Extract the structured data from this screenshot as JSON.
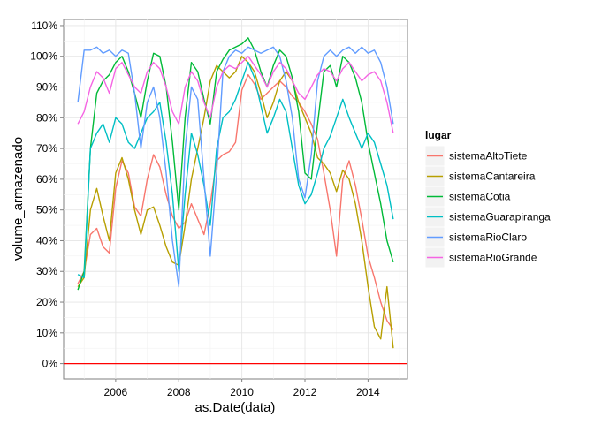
{
  "chart_data": {
    "type": "line",
    "xlabel": "as.Date(data)",
    "ylabel": "volume_armazenado",
    "xlim": [
      2004.35,
      2015.25
    ],
    "ylim": [
      -5,
      112
    ],
    "x_ticks": [
      2006,
      2008,
      2010,
      2012,
      2014
    ],
    "y_ticks": [
      0,
      10,
      20,
      30,
      40,
      50,
      60,
      70,
      80,
      90,
      100,
      110
    ],
    "y_tick_suffix": "%",
    "x_tick_labels": [
      "2006",
      "2008",
      "2010",
      "2012",
      "2014"
    ],
    "y_tick_labels": [
      "0%",
      "10%",
      "20%",
      "30%",
      "40%",
      "50%",
      "60%",
      "70%",
      "80%",
      "90%",
      "100%",
      "110%"
    ],
    "grid": true,
    "legend_position": "right",
    "legend_title": "lugar",
    "reference_line": {
      "y": 0,
      "color": "#ff0000"
    },
    "series": [
      {
        "name": "sistemaAltoTiete",
        "color": "#F8766D",
        "x": [
          2004.8,
          2005.0,
          2005.2,
          2005.4,
          2005.6,
          2005.8,
          2006.0,
          2006.2,
          2006.4,
          2006.6,
          2006.8,
          2007.0,
          2007.2,
          2007.4,
          2007.6,
          2007.8,
          2008.0,
          2008.2,
          2008.4,
          2008.6,
          2008.8,
          2009.0,
          2009.2,
          2009.4,
          2009.6,
          2009.8,
          2010.0,
          2010.2,
          2010.4,
          2010.6,
          2010.8,
          2011.0,
          2011.2,
          2011.4,
          2011.6,
          2011.8,
          2012.0,
          2012.2,
          2012.4,
          2012.6,
          2012.8,
          2013.0,
          2013.2,
          2013.4,
          2013.6,
          2013.8,
          2014.0,
          2014.2,
          2014.4,
          2014.6,
          2014.8
        ],
        "y": [
          26,
          30,
          42,
          44,
          38,
          36,
          57,
          66,
          62,
          51,
          48,
          60,
          68,
          64,
          55,
          48,
          44,
          46,
          52,
          47,
          42,
          52,
          66,
          68,
          69,
          72,
          89,
          94,
          91,
          86,
          88,
          90,
          92,
          90,
          87,
          85,
          82,
          78,
          73,
          62,
          50,
          35,
          60,
          66,
          58,
          47,
          35,
          28,
          20,
          14,
          11
        ]
      },
      {
        "name": "sistemaCantareira",
        "color": "#B79F00",
        "x": [
          2004.8,
          2005.0,
          2005.2,
          2005.4,
          2005.6,
          2005.8,
          2006.0,
          2006.2,
          2006.4,
          2006.6,
          2006.8,
          2007.0,
          2007.2,
          2007.4,
          2007.6,
          2007.8,
          2008.0,
          2008.2,
          2008.4,
          2008.6,
          2008.8,
          2009.0,
          2009.2,
          2009.4,
          2009.6,
          2009.8,
          2010.0,
          2010.2,
          2010.4,
          2010.6,
          2010.8,
          2011.0,
          2011.2,
          2011.4,
          2011.6,
          2011.8,
          2012.0,
          2012.2,
          2012.4,
          2012.6,
          2012.8,
          2013.0,
          2013.2,
          2013.4,
          2013.6,
          2013.8,
          2014.0,
          2014.2,
          2014.4,
          2014.6,
          2014.8
        ],
        "y": [
          25,
          28,
          50,
          57,
          48,
          40,
          62,
          67,
          60,
          50,
          42,
          50,
          51,
          45,
          38,
          33,
          32,
          45,
          60,
          70,
          80,
          92,
          97,
          95,
          93,
          95,
          100,
          98,
          95,
          88,
          80,
          85,
          92,
          95,
          92,
          85,
          80,
          75,
          67,
          65,
          62,
          56,
          63,
          60,
          52,
          40,
          25,
          12,
          8,
          25,
          5
        ]
      },
      {
        "name": "sistemaCotia",
        "color": "#00BA38",
        "x": [
          2004.8,
          2005.0,
          2005.2,
          2005.4,
          2005.6,
          2005.8,
          2006.0,
          2006.2,
          2006.4,
          2006.6,
          2006.8,
          2007.0,
          2007.2,
          2007.4,
          2007.6,
          2007.8,
          2008.0,
          2008.2,
          2008.4,
          2008.6,
          2008.8,
          2009.0,
          2009.2,
          2009.4,
          2009.6,
          2009.8,
          2010.0,
          2010.2,
          2010.4,
          2010.6,
          2010.8,
          2011.0,
          2011.2,
          2011.4,
          2011.6,
          2011.8,
          2012.0,
          2012.2,
          2012.4,
          2012.6,
          2012.8,
          2013.0,
          2013.2,
          2013.4,
          2013.6,
          2013.8,
          2014.0,
          2014.2,
          2014.4,
          2014.6,
          2014.8
        ],
        "y": [
          24,
          30,
          70,
          88,
          92,
          94,
          98,
          100,
          95,
          88,
          80,
          92,
          101,
          100,
          90,
          72,
          50,
          80,
          98,
          95,
          86,
          78,
          95,
          99,
          102,
          103,
          104,
          106,
          102,
          95,
          90,
          97,
          102,
          100,
          93,
          82,
          62,
          60,
          78,
          95,
          97,
          90,
          100,
          98,
          93,
          85,
          72,
          62,
          52,
          40,
          33
        ]
      },
      {
        "name": "sistemaGuarapiranga",
        "color": "#00BFC4",
        "x": [
          2004.8,
          2005.0,
          2005.2,
          2005.4,
          2005.6,
          2005.8,
          2006.0,
          2006.2,
          2006.4,
          2006.6,
          2006.8,
          2007.0,
          2007.2,
          2007.4,
          2007.6,
          2007.8,
          2008.0,
          2008.2,
          2008.4,
          2008.6,
          2008.8,
          2009.0,
          2009.2,
          2009.4,
          2009.6,
          2009.8,
          2010.0,
          2010.2,
          2010.4,
          2010.6,
          2010.8,
          2011.0,
          2011.2,
          2011.4,
          2011.6,
          2011.8,
          2012.0,
          2012.2,
          2012.4,
          2012.6,
          2012.8,
          2013.0,
          2013.2,
          2013.4,
          2013.6,
          2013.8,
          2014.0,
          2014.2,
          2014.4,
          2014.6,
          2014.8
        ],
        "y": [
          29,
          28,
          70,
          75,
          78,
          72,
          80,
          78,
          72,
          70,
          75,
          80,
          82,
          85,
          72,
          55,
          30,
          55,
          75,
          68,
          58,
          45,
          70,
          80,
          82,
          86,
          92,
          98,
          93,
          84,
          75,
          80,
          86,
          82,
          70,
          58,
          52,
          55,
          62,
          70,
          74,
          80,
          86,
          80,
          75,
          70,
          75,
          72,
          65,
          58,
          47
        ]
      },
      {
        "name": "sistemaRioClaro",
        "color": "#619CFF",
        "x": [
          2004.8,
          2005.0,
          2005.2,
          2005.4,
          2005.6,
          2005.8,
          2006.0,
          2006.2,
          2006.4,
          2006.6,
          2006.8,
          2007.0,
          2007.2,
          2007.4,
          2007.6,
          2007.8,
          2008.0,
          2008.2,
          2008.4,
          2008.6,
          2008.8,
          2009.0,
          2009.2,
          2009.4,
          2009.6,
          2009.8,
          2010.0,
          2010.2,
          2010.4,
          2010.6,
          2010.8,
          2011.0,
          2011.2,
          2011.4,
          2011.6,
          2011.8,
          2012.0,
          2012.2,
          2012.4,
          2012.6,
          2012.8,
          2013.0,
          2013.2,
          2013.4,
          2013.6,
          2013.8,
          2014.0,
          2014.2,
          2014.4,
          2014.6,
          2014.8
        ],
        "y": [
          85,
          102,
          102,
          103,
          101,
          102,
          100,
          102,
          101,
          88,
          70,
          85,
          90,
          80,
          62,
          40,
          25,
          70,
          90,
          86,
          60,
          35,
          62,
          95,
          100,
          102,
          101,
          103,
          102,
          101,
          102,
          103,
          100,
          92,
          80,
          60,
          54,
          68,
          92,
          100,
          102,
          100,
          102,
          103,
          101,
          103,
          101,
          102,
          98,
          90,
          78
        ]
      },
      {
        "name": "sistemaRioGrande",
        "color": "#F564E3",
        "x": [
          2004.8,
          2005.0,
          2005.2,
          2005.4,
          2005.6,
          2005.8,
          2006.0,
          2006.2,
          2006.4,
          2006.6,
          2006.8,
          2007.0,
          2007.2,
          2007.4,
          2007.6,
          2007.8,
          2008.0,
          2008.2,
          2008.4,
          2008.6,
          2008.8,
          2009.0,
          2009.2,
          2009.4,
          2009.6,
          2009.8,
          2010.0,
          2010.2,
          2010.4,
          2010.6,
          2010.8,
          2011.0,
          2011.2,
          2011.4,
          2011.6,
          2011.8,
          2012.0,
          2012.2,
          2012.4,
          2012.6,
          2012.8,
          2013.0,
          2013.2,
          2013.4,
          2013.6,
          2013.8,
          2014.0,
          2014.2,
          2014.4,
          2014.6,
          2014.8
        ],
        "y": [
          78,
          82,
          90,
          95,
          93,
          88,
          96,
          98,
          94,
          90,
          88,
          95,
          98,
          96,
          90,
          82,
          78,
          90,
          95,
          92,
          85,
          80,
          90,
          95,
          97,
          96,
          98,
          100,
          97,
          94,
          90,
          95,
          98,
          96,
          92,
          88,
          86,
          90,
          94,
          96,
          95,
          92,
          96,
          98,
          95,
          92,
          94,
          95,
          92,
          85,
          75
        ]
      }
    ]
  }
}
